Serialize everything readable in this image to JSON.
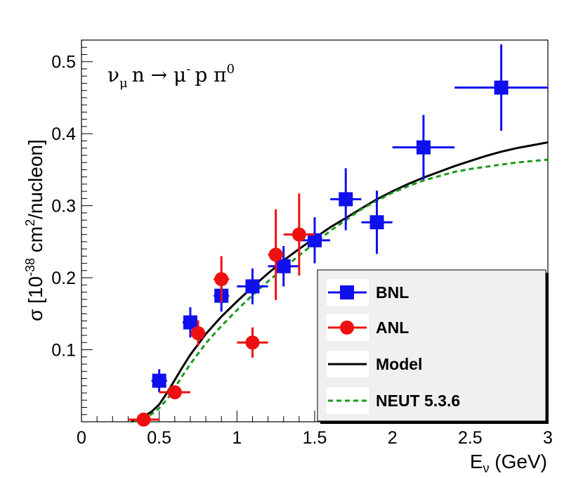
{
  "chart_data": {
    "type": "scatter",
    "title": "",
    "annotation": {
      "nu": "ν",
      "nu_sub": "μ",
      "rest": "n → μ",
      "mu_sup": "-",
      "tail": "p π",
      "pi_sup": "0"
    },
    "xlabel": {
      "main": "E",
      "sub": "ν",
      "unit": " (GeV)"
    },
    "ylabel": {
      "pre": "σ [10",
      "exp1": "-38",
      "mid": " cm",
      "exp2": "2",
      "post": "/nucleon]"
    },
    "xlim": [
      0,
      3
    ],
    "ylim": [
      0,
      0.53
    ],
    "x_ticks": [
      0,
      0.5,
      1,
      1.5,
      2,
      2.5,
      3
    ],
    "x_tick_labels": [
      "0",
      "0.5",
      "1",
      "1.5",
      "2",
      "2.5",
      "3"
    ],
    "y_ticks": [
      0.1,
      0.2,
      0.3,
      0.4,
      0.5
    ],
    "y_tick_labels": [
      "0.1",
      "0.2",
      "0.3",
      "0.4",
      "0.5"
    ],
    "legend_position": "bottom-right",
    "series": [
      {
        "name": "BNL",
        "kind": "points",
        "marker": "square",
        "color": "#1010ee",
        "points": [
          {
            "x": 0.5,
            "y": 0.057,
            "xerr": 0.05,
            "yerr": 0.016
          },
          {
            "x": 0.7,
            "y": 0.138,
            "xerr": 0.05,
            "yerr": 0.021
          },
          {
            "x": 0.9,
            "y": 0.175,
            "xerr": 0.05,
            "yerr": 0.022
          },
          {
            "x": 1.1,
            "y": 0.188,
            "xerr": 0.1,
            "yerr": 0.025
          },
          {
            "x": 1.3,
            "y": 0.216,
            "xerr": 0.1,
            "yerr": 0.028
          },
          {
            "x": 1.5,
            "y": 0.252,
            "xerr": 0.1,
            "yerr": 0.032
          },
          {
            "x": 1.7,
            "y": 0.309,
            "xerr": 0.1,
            "yerr": 0.043
          },
          {
            "x": 1.9,
            "y": 0.277,
            "xerr": 0.1,
            "yerr": 0.044
          },
          {
            "x": 2.2,
            "y": 0.381,
            "xerr": 0.2,
            "yerr": 0.045
          },
          {
            "x": 2.7,
            "y": 0.464,
            "xerr": 0.3,
            "yerr": 0.06
          }
        ]
      },
      {
        "name": "ANL",
        "kind": "points",
        "marker": "circle",
        "color": "#ee1010",
        "points": [
          {
            "x": 0.4,
            "y": 0.003,
            "xerr": 0.1,
            "yerr": 0.004
          },
          {
            "x": 0.6,
            "y": 0.041,
            "xerr": 0.1,
            "yerr": 0.004
          },
          {
            "x": 0.75,
            "y": 0.123,
            "xerr": 0.05,
            "yerr": 0.018
          },
          {
            "x": 0.9,
            "y": 0.198,
            "xerr": 0.05,
            "yerr": 0.032
          },
          {
            "x": 1.1,
            "y": 0.11,
            "xerr": 0.1,
            "yerr": 0.021
          },
          {
            "x": 1.25,
            "y": 0.232,
            "xerr": 0.05,
            "yerr": 0.063
          },
          {
            "x": 1.4,
            "y": 0.26,
            "xerr": 0.1,
            "yerr": 0.057
          }
        ]
      },
      {
        "name": "Model",
        "kind": "line",
        "style": "solid",
        "color": "#000000",
        "x": [
          0.32,
          0.36,
          0.4,
          0.45,
          0.5,
          0.55,
          0.6,
          0.65,
          0.7,
          0.8,
          0.9,
          1.0,
          1.1,
          1.2,
          1.3,
          1.4,
          1.5,
          1.6,
          1.7,
          1.8,
          1.9,
          2.0,
          2.1,
          2.2,
          2.3,
          2.4,
          2.5,
          2.6,
          2.7,
          2.8,
          2.9,
          3.0
        ],
        "y": [
          0.0,
          0.002,
          0.007,
          0.014,
          0.024,
          0.04,
          0.058,
          0.076,
          0.093,
          0.122,
          0.146,
          0.167,
          0.187,
          0.206,
          0.224,
          0.24,
          0.255,
          0.27,
          0.283,
          0.296,
          0.309,
          0.32,
          0.33,
          0.339,
          0.347,
          0.355,
          0.362,
          0.369,
          0.375,
          0.38,
          0.384,
          0.388
        ]
      },
      {
        "name": "NEUT 5.3.6",
        "kind": "line",
        "style": "dashed",
        "color": "#1a991a",
        "x": [
          0.34,
          0.38,
          0.42,
          0.46,
          0.5,
          0.55,
          0.6,
          0.65,
          0.7,
          0.8,
          0.9,
          1.0,
          1.1,
          1.2,
          1.3,
          1.4,
          1.5,
          1.6,
          1.7,
          1.8,
          1.9,
          2.0,
          2.1,
          2.2,
          2.3,
          2.4,
          2.5,
          2.6,
          2.7,
          2.8,
          2.9,
          3.0
        ],
        "y": [
          0.0,
          0.002,
          0.006,
          0.012,
          0.019,
          0.031,
          0.047,
          0.064,
          0.08,
          0.109,
          0.133,
          0.155,
          0.176,
          0.195,
          0.213,
          0.231,
          0.248,
          0.265,
          0.28,
          0.295,
          0.307,
          0.318,
          0.327,
          0.335,
          0.341,
          0.347,
          0.351,
          0.354,
          0.357,
          0.36,
          0.362,
          0.364
        ]
      }
    ]
  }
}
